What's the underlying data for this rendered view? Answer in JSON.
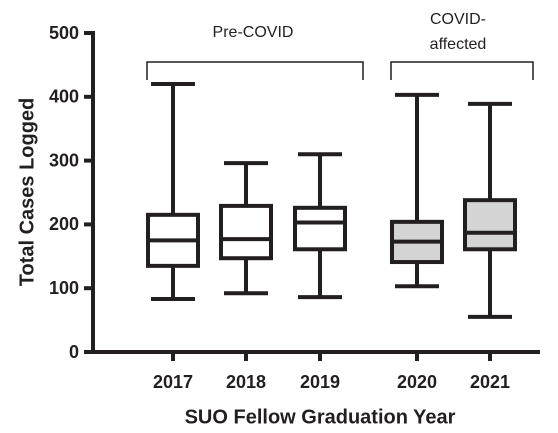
{
  "chart_data": {
    "type": "box",
    "y_label": "Total Cases Logged",
    "x_label": "SUO Fellow Graduation Year",
    "categories": [
      "2017",
      "2018",
      "2019",
      "2020",
      "2021"
    ],
    "boxes": [
      {
        "min": 83,
        "q1": 135,
        "median": 175,
        "q3": 215,
        "max": 420
      },
      {
        "min": 92,
        "q1": 147,
        "median": 177,
        "q3": 229,
        "max": 296
      },
      {
        "min": 86,
        "q1": 161,
        "median": 203,
        "q3": 226,
        "max": 310
      },
      {
        "min": 103,
        "q1": 141,
        "median": 173,
        "q3": 204,
        "max": 403
      },
      {
        "min": 55,
        "q1": 161,
        "median": 187,
        "q3": 238,
        "max": 389
      }
    ],
    "colors": [
      "#ffffff",
      "#ffffff",
      "#ffffff",
      "#d4d4d4",
      "#d4d4d4"
    ],
    "line_color": "#231f20",
    "annotations": [
      {
        "text": [
          "Pre-COVID"
        ]
      },
      {
        "text": [
          "COVID-",
          "affected"
        ]
      }
    ],
    "ylim": [
      0,
      500
    ],
    "yticks": [
      0,
      100,
      200,
      300,
      400,
      500
    ]
  }
}
